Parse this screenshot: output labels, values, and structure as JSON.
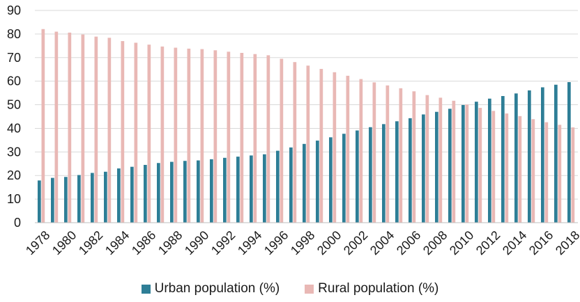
{
  "chart_data": {
    "type": "bar",
    "title": "",
    "xlabel": "",
    "ylabel": "",
    "ylim": [
      0,
      90
    ],
    "yticks": [
      0,
      10,
      20,
      30,
      40,
      50,
      60,
      70,
      80,
      90
    ],
    "grid": true,
    "legend_position": "bottom",
    "categories": [
      "1978",
      "1979",
      "1980",
      "1981",
      "1982",
      "1983",
      "1984",
      "1985",
      "1986",
      "1987",
      "1988",
      "1989",
      "1990",
      "1991",
      "1992",
      "1993",
      "1994",
      "1995",
      "1996",
      "1997",
      "1998",
      "1999",
      "2000",
      "2001",
      "2002",
      "2003",
      "2004",
      "2005",
      "2006",
      "2007",
      "2008",
      "2009",
      "2010",
      "2011",
      "2012",
      "2013",
      "2014",
      "2015",
      "2016",
      "2017",
      "2018"
    ],
    "xtick_labels": [
      "1978",
      "1980",
      "1982",
      "1984",
      "1986",
      "1988",
      "1990",
      "1992",
      "1994",
      "1996",
      "1998",
      "2000",
      "2002",
      "2004",
      "2006",
      "2008",
      "2010",
      "2012",
      "2014",
      "2016",
      "2018"
    ],
    "series": [
      {
        "name": "Urban population (%)",
        "color": "#2e7e96",
        "values": [
          17.9,
          19.0,
          19.4,
          20.2,
          21.1,
          21.6,
          23.0,
          23.7,
          24.5,
          25.3,
          25.8,
          26.2,
          26.4,
          26.9,
          27.5,
          28.0,
          28.5,
          29.0,
          30.5,
          31.9,
          33.4,
          34.8,
          36.2,
          37.7,
          39.1,
          40.5,
          41.8,
          43.0,
          44.3,
          45.9,
          47.0,
          48.3,
          49.9,
          51.3,
          52.6,
          53.7,
          54.8,
          56.1,
          57.4,
          58.5,
          59.6
        ]
      },
      {
        "name": "Rural population (%)",
        "color": "#e9b8b5",
        "values": [
          82.1,
          81.0,
          80.6,
          79.8,
          78.9,
          78.4,
          77.0,
          76.3,
          75.5,
          74.7,
          74.2,
          73.8,
          73.6,
          73.1,
          72.5,
          72.0,
          71.5,
          71.0,
          69.5,
          68.1,
          66.6,
          65.2,
          63.8,
          62.3,
          60.9,
          59.5,
          58.2,
          57.0,
          55.7,
          54.1,
          53.0,
          51.7,
          50.1,
          48.7,
          47.4,
          46.3,
          45.2,
          43.9,
          42.6,
          41.5,
          40.4
        ]
      }
    ]
  }
}
